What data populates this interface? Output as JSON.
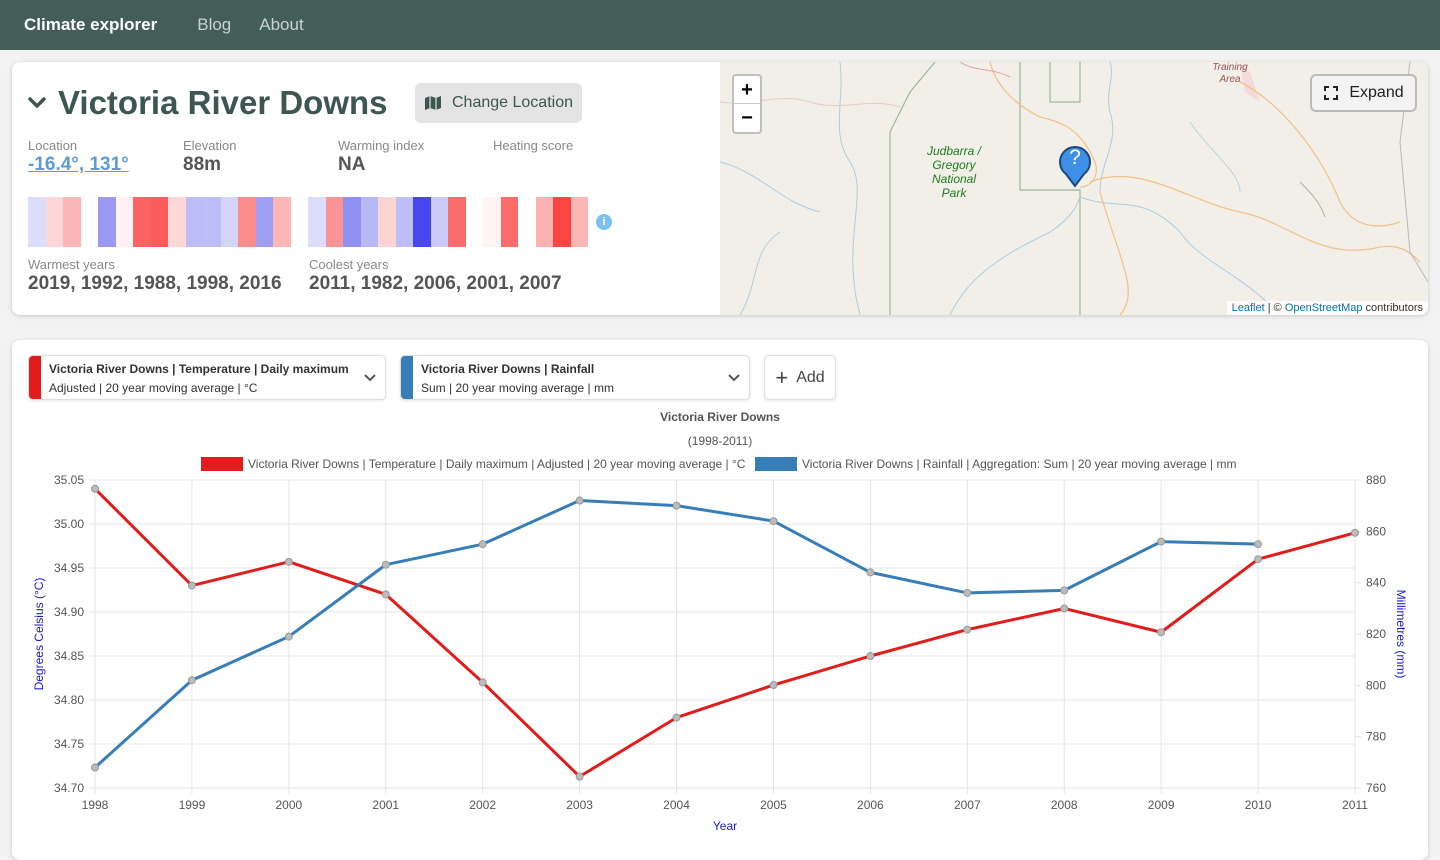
{
  "nav": {
    "brand": "Climate explorer",
    "links": [
      "Blog",
      "About"
    ]
  },
  "location": {
    "name": "Victoria River Downs",
    "change_label": "Change Location",
    "stats": [
      {
        "label": "Location",
        "value": "-16.4°, 131°",
        "link": true
      },
      {
        "label": "Elevation",
        "value": "88m"
      },
      {
        "label": "Warming index",
        "value": "NA"
      },
      {
        "label": "Heating score",
        "value": ""
      }
    ],
    "warmest_label": "Warmest years",
    "warmest": "2019, 1992, 1988, 1998, 2016",
    "coolest_label": "Coolest years",
    "coolest": "2011, 1982, 2006, 2001, 2007",
    "stripes": [
      "#dcdcfb",
      "#fdd7d7",
      "#fcb6b6",
      "#ffffff",
      "#9a9af4",
      "#fff1f1",
      "#fc6464",
      "#fc5c5c",
      "#fdd7d7",
      "#bcbcf7",
      "#bdbdf7",
      "#d4d4f9",
      "#fa8c8c",
      "#9e9ef5",
      "#fcb6b6",
      "#ffffff",
      "#dcdcfb",
      "#fa9494",
      "#9090f3",
      "#b8b8f6",
      "#fdd4d4",
      "#bdbdf7",
      "#4747ef",
      "#cacaf8",
      "#fa6c6c",
      "#ffffff",
      "#fff3f3",
      "#fa6c6c",
      "#ffffff",
      "#fcb2b2",
      "#fb4444",
      "#fcb6b6"
    ]
  },
  "map": {
    "zoom_in": "+",
    "zoom_out": "−",
    "expand_label": "Expand",
    "park_label": "Judbarra / Gregory National Park",
    "training_label": "Training Area",
    "marker": "?",
    "attribution_leaflet": "Leaflet",
    "attribution_sep": " | © ",
    "attribution_osm": "OpenStreetMap",
    "attribution_tail": " contributors"
  },
  "selectors": [
    {
      "line1": "Victoria River Downs | Temperature | Daily maximum",
      "line2": "Adjusted | 20 year moving average | °C",
      "color": "#e41b1b"
    },
    {
      "line1": "Victoria River Downs | Rainfall",
      "line2": "Sum | 20 year moving average | mm",
      "color": "#377eb8"
    }
  ],
  "add_label": "Add",
  "chart_data": {
    "type": "line",
    "title": "Victoria River Downs",
    "subtitle": "(1998-2011)",
    "xlabel": "Year",
    "ylabel_left": "Degrees Celsius (°C)",
    "ylabel_right": "Millimetres (mm)",
    "x": [
      1998,
      1999,
      2000,
      2001,
      2002,
      2003,
      2004,
      2005,
      2006,
      2007,
      2008,
      2009,
      2010,
      2011
    ],
    "ylim_left": [
      34.7,
      35.05
    ],
    "ylim_right": [
      760,
      880
    ],
    "yticks_left": [
      "35.05",
      "35.00",
      "34.95",
      "34.90",
      "34.85",
      "34.80",
      "34.75",
      "34.70"
    ],
    "yticks_right": [
      "880",
      "860",
      "840",
      "820",
      "800",
      "780",
      "760"
    ],
    "series": [
      {
        "name": "Victoria River Downs | Temperature | Daily maximum | Adjusted | 20 year moving average | °C",
        "axis": "left",
        "color": "#e41b1b",
        "values": [
          35.04,
          34.93,
          34.957,
          34.92,
          34.82,
          34.713,
          34.78,
          34.817,
          34.85,
          34.88,
          34.904,
          34.877,
          34.96,
          34.99
        ]
      },
      {
        "name": "Victoria River Downs | Rainfall | Aggregation: Sum | 20 year moving average | mm",
        "axis": "right",
        "color": "#377eb8",
        "values": [
          768,
          802,
          819,
          847,
          855,
          872,
          870,
          864,
          844,
          836,
          837,
          856,
          855,
          null
        ]
      }
    ],
    "grid": true,
    "legend": "top"
  }
}
